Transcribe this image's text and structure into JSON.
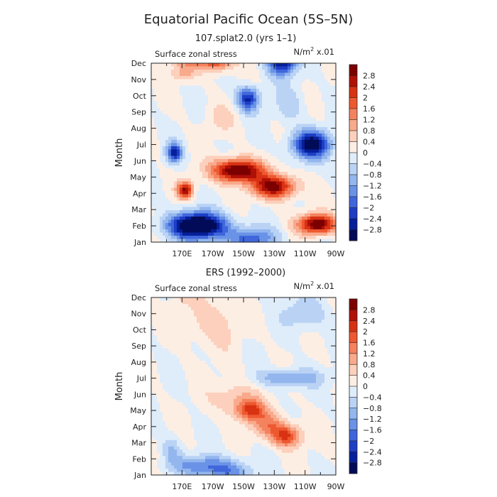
{
  "figure": {
    "title": "Equatorial Pacific Ocean (5S–5N)"
  },
  "chart_data": [
    {
      "type": "heatmap",
      "title": "107.splat2.0 (yrs 1–1)",
      "subtitle_left": "Surface zonal stress",
      "units_main": "N/m",
      "units_sup": "2",
      "units_rest": " x.01",
      "ylabel": "Month",
      "xlabel": "",
      "x_ticks": [
        "170E",
        "170W",
        "150W",
        "130W",
        "110W",
        "90W"
      ],
      "y_ticks": [
        "Jan",
        "Feb",
        "Mar",
        "Apr",
        "May",
        "Jun",
        "Jul",
        "Aug",
        "Sep",
        "Oct",
        "Nov",
        "Dec"
      ],
      "colorbar_labels": [
        "2.8",
        "2.4",
        "2",
        "1.6",
        "1.2",
        "0.8",
        "0.4",
        "0",
        "−0.4",
        "−0.8",
        "−1.2",
        "−1.6",
        "−2",
        "−2.4",
        "−2.8"
      ],
      "colors": [
        "#7d0000",
        "#b01006",
        "#d83213",
        "#ee5830",
        "#f5825e",
        "#f9aa8c",
        "#fcd0bc",
        "#fdeee4",
        "#dfecfa",
        "#bad3f5",
        "#93b6ee",
        "#6a92e6",
        "#3f66db",
        "#1d3ec5",
        "#061f9a",
        "#010b57"
      ],
      "features": [
        {
          "lon": 172,
          "mon": 11.6,
          "rx": 10,
          "ry": 0.55,
          "amp": 3.4
        },
        {
          "lon": 192,
          "mon": 11.2,
          "rx": 11,
          "ry": 0.65,
          "amp": 2.4
        },
        {
          "lon": 171,
          "mon": 10.4,
          "rx": 8,
          "ry": 0.5,
          "amp": 1.0
        },
        {
          "lon": 235,
          "mon": 11.0,
          "rx": 9,
          "ry": 0.75,
          "amp": -2.8
        },
        {
          "lon": 213,
          "mon": 8.8,
          "rx": 7,
          "ry": 0.75,
          "amp": -2.5
        },
        {
          "lon": 254,
          "mon": 6.0,
          "rx": 12,
          "ry": 0.85,
          "amp": -3.2
        },
        {
          "lon": 165,
          "mon": 5.5,
          "rx": 5,
          "ry": 0.6,
          "amp": -2.5
        },
        {
          "lon": 206,
          "mon": 4.4,
          "rx": 16,
          "ry": 0.7,
          "amp": 3.6
        },
        {
          "lon": 230,
          "mon": 3.4,
          "rx": 14,
          "ry": 0.7,
          "amp": 3.0
        },
        {
          "lon": 172,
          "mon": 3.2,
          "rx": 5,
          "ry": 0.5,
          "amp": 2.8
        },
        {
          "lon": 258,
          "mon": 1.1,
          "rx": 12,
          "ry": 0.6,
          "amp": 3.4
        },
        {
          "lon": 180,
          "mon": 1.0,
          "rx": 18,
          "ry": 0.8,
          "amp": -4.2
        },
        {
          "lon": 215,
          "mon": 0.2,
          "rx": 16,
          "ry": 0.7,
          "amp": -1.8
        },
        {
          "lon": 195,
          "mon": 7.6,
          "rx": 10,
          "ry": 0.9,
          "amp": 0.5
        },
        {
          "lon": 240,
          "mon": 8.5,
          "rx": 10,
          "ry": 1.2,
          "amp": -0.6
        }
      ]
    },
    {
      "type": "heatmap",
      "title": "ERS (1992–2000)",
      "subtitle_left": "Surface zonal stress",
      "units_main": "N/m",
      "units_sup": "2",
      "units_rest": " x.01",
      "ylabel": "Month",
      "xlabel": "",
      "x_ticks": [
        "170E",
        "170W",
        "150W",
        "130W",
        "110W",
        "90W"
      ],
      "y_ticks": [
        "Jan",
        "Feb",
        "Mar",
        "Apr",
        "May",
        "Jun",
        "Jul",
        "Aug",
        "Sep",
        "Oct",
        "Nov",
        "Dec"
      ],
      "colorbar_labels": [
        "2.8",
        "2.4",
        "2",
        "1.6",
        "1.2",
        "0.8",
        "0.4",
        "0",
        "−0.4",
        "−0.8",
        "−1.2",
        "−1.6",
        "−2",
        "−2.4",
        "−2.8"
      ],
      "colors": [
        "#7d0000",
        "#b01006",
        "#d83213",
        "#ee5830",
        "#f5825e",
        "#f9aa8c",
        "#fcd0bc",
        "#fdeee4",
        "#dfecfa",
        "#bad3f5",
        "#93b6ee",
        "#6a92e6",
        "#3f66db",
        "#1d3ec5",
        "#061f9a",
        "#010b57"
      ],
      "features": [
        {
          "lon": 214,
          "mon": 4.0,
          "rx": 10,
          "ry": 0.65,
          "amp": 1.8
        },
        {
          "lon": 238,
          "mon": 2.4,
          "rx": 10,
          "ry": 0.7,
          "amp": 2.0
        },
        {
          "lon": 226,
          "mon": 3.1,
          "rx": 12,
          "ry": 0.8,
          "amp": 1.2
        },
        {
          "lon": 205,
          "mon": 4.8,
          "rx": 16,
          "ry": 1.0,
          "amp": 0.8
        },
        {
          "lon": 190,
          "mon": 9.5,
          "rx": 16,
          "ry": 1.6,
          "amp": 0.7
        },
        {
          "lon": 172,
          "mon": 11.3,
          "rx": 8,
          "ry": 0.7,
          "amp": 0.6
        },
        {
          "lon": 240,
          "mon": 6.0,
          "rx": 20,
          "ry": 0.55,
          "amp": -1.3
        },
        {
          "lon": 250,
          "mon": 10.0,
          "rx": 14,
          "ry": 1.0,
          "amp": -0.8
        },
        {
          "lon": 230,
          "mon": 11.5,
          "rx": 10,
          "ry": 0.6,
          "amp": -0.8
        },
        {
          "lon": 186,
          "mon": 0.6,
          "rx": 22,
          "ry": 0.6,
          "amp": -1.6
        },
        {
          "lon": 200,
          "mon": 0.1,
          "rx": 15,
          "ry": 0.45,
          "amp": -1.0
        },
        {
          "lon": 163,
          "mon": 1.6,
          "rx": 6,
          "ry": 0.8,
          "amp": -0.8
        }
      ]
    }
  ]
}
